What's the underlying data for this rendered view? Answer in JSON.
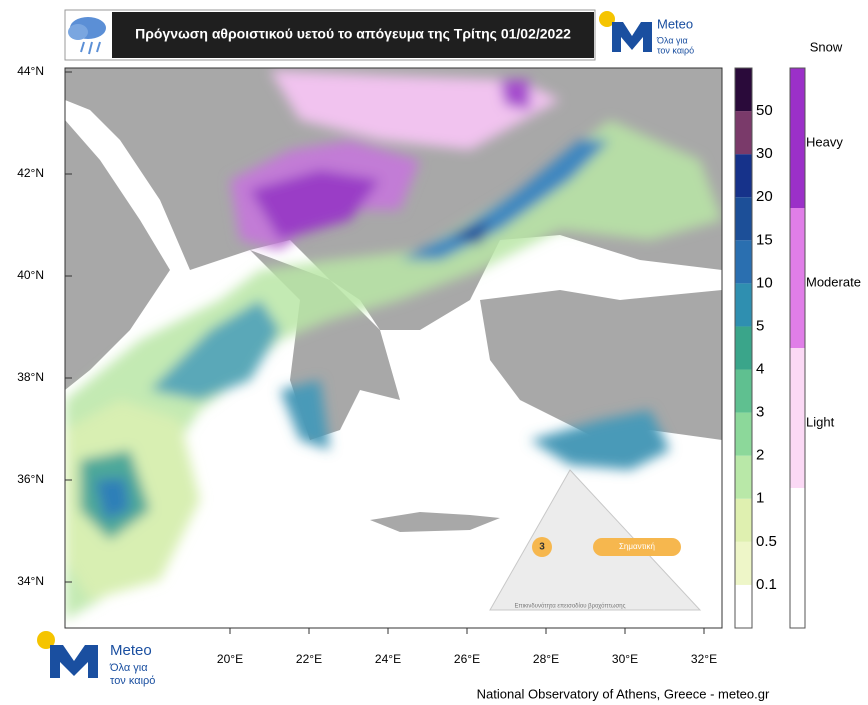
{
  "header": {
    "title": "Πρόγνωση αθροιστικού υετού το απόγευμα της Τρίτης 01/02/2022"
  },
  "logo": {
    "name": "Meteo",
    "tagline_1": "Όλα για",
    "tagline_2": "τον καιρό"
  },
  "map": {
    "latitude_labels": [
      "44°N",
      "42°N",
      "40°N",
      "38°N",
      "36°N",
      "34°N"
    ],
    "longitude_labels": [
      "20°E",
      "22°E",
      "24°E",
      "26°E",
      "28°E",
      "30°E",
      "32°E"
    ]
  },
  "precip_legend": {
    "labels": [
      "0.1",
      "0.5",
      "1",
      "2",
      "3",
      "4",
      "5",
      "10",
      "15",
      "20",
      "30",
      "50"
    ]
  },
  "snow_legend": {
    "title": "Snow",
    "labels": [
      "Heavy",
      "Moderate",
      "Light"
    ]
  },
  "inset": {
    "level": "3",
    "level_name": "Σημαντική",
    "caption": "Επικινδυνότητα επεισοδίου βροχόπτωσης"
  },
  "footer": {
    "credit": "National Observatory of Athens, Greece - meteo.gr"
  }
}
